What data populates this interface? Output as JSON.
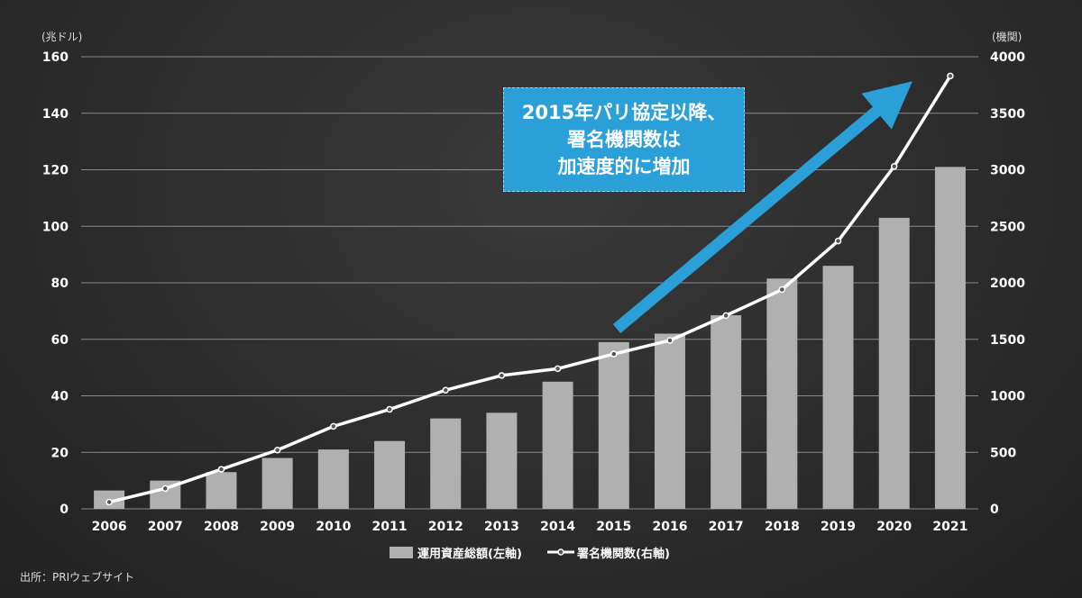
{
  "chart_data": {
    "type": "bar+line",
    "categories": [
      "2006",
      "2007",
      "2008",
      "2009",
      "2010",
      "2011",
      "2012",
      "2013",
      "2014",
      "2015",
      "2016",
      "2017",
      "2018",
      "2019",
      "2020",
      "2021"
    ],
    "series": [
      {
        "name": "運用資産総額(左軸)",
        "type": "bar",
        "axis": "left",
        "color": "#b0b0b0",
        "values": [
          6.5,
          10,
          13,
          18,
          21,
          24,
          32,
          34,
          45,
          59,
          62,
          68.5,
          81.5,
          86,
          103,
          121
        ]
      },
      {
        "name": "署名機関数(右軸)",
        "type": "line",
        "axis": "right",
        "color": "#ffffff",
        "values": [
          60,
          180,
          350,
          520,
          730,
          880,
          1050,
          1180,
          1240,
          1370,
          1490,
          1710,
          1940,
          2370,
          3030,
          3830
        ]
      }
    ],
    "left_axis": {
      "unit": "(兆ドル)",
      "min": 0,
      "max": 160,
      "ticks": [
        0,
        20,
        40,
        60,
        80,
        100,
        120,
        140,
        160
      ]
    },
    "right_axis": {
      "unit": "(機関)",
      "min": 0,
      "max": 4000,
      "ticks": [
        0,
        500,
        1000,
        1500,
        2000,
        2500,
        3000,
        3500,
        4000
      ]
    },
    "grid": true,
    "legend_placement": "bottom-center",
    "annotation": {
      "lines": [
        "2015年パリ協定以降、",
        "署名機関数は",
        "加速度的に増加"
      ],
      "color": "#2a9fd8"
    }
  },
  "source": "出所：PRIウェブサイト"
}
